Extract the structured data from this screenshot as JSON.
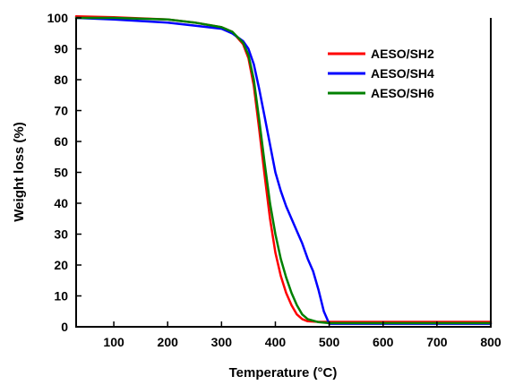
{
  "chart_data": {
    "type": "line",
    "xlabel": "Temperature (°C)",
    "ylabel": "Weight loss (%)",
    "xlim": [
      30,
      800
    ],
    "ylim": [
      0,
      100
    ],
    "xticks": [
      100,
      200,
      300,
      400,
      500,
      600,
      700,
      800
    ],
    "yticks": [
      0,
      10,
      20,
      30,
      40,
      50,
      60,
      70,
      80,
      90,
      100
    ],
    "legend_position": "top-right",
    "series": [
      {
        "name": "AESO/SH2",
        "color": "#ff0000",
        "points": [
          [
            30,
            100.5
          ],
          [
            100,
            100.2
          ],
          [
            200,
            99.5
          ],
          [
            250,
            98.5
          ],
          [
            300,
            97.0
          ],
          [
            320,
            95.5
          ],
          [
            340,
            91.5
          ],
          [
            350,
            87.0
          ],
          [
            360,
            78.0
          ],
          [
            370,
            64.0
          ],
          [
            380,
            49.0
          ],
          [
            390,
            35.0
          ],
          [
            400,
            24.0
          ],
          [
            410,
            16.5
          ],
          [
            420,
            11.0
          ],
          [
            430,
            7.0
          ],
          [
            440,
            4.0
          ],
          [
            450,
            2.5
          ],
          [
            460,
            1.8
          ],
          [
            480,
            1.6
          ],
          [
            500,
            1.6
          ],
          [
            600,
            1.6
          ],
          [
            700,
            1.6
          ],
          [
            800,
            1.6
          ]
        ]
      },
      {
        "name": "AESO/SH4",
        "color": "#0000ff",
        "points": [
          [
            30,
            100.0
          ],
          [
            100,
            99.5
          ],
          [
            200,
            98.5
          ],
          [
            250,
            97.5
          ],
          [
            300,
            96.5
          ],
          [
            320,
            95.0
          ],
          [
            340,
            92.5
          ],
          [
            350,
            90.0
          ],
          [
            360,
            85.0
          ],
          [
            370,
            77.0
          ],
          [
            380,
            68.0
          ],
          [
            390,
            59.0
          ],
          [
            400,
            50.0
          ],
          [
            410,
            44.0
          ],
          [
            420,
            39.0
          ],
          [
            430,
            35.0
          ],
          [
            440,
            31.0
          ],
          [
            450,
            27.0
          ],
          [
            460,
            22.0
          ],
          [
            470,
            18.0
          ],
          [
            480,
            12.0
          ],
          [
            490,
            5.0
          ],
          [
            500,
            1.0
          ],
          [
            600,
            1.0
          ],
          [
            700,
            1.0
          ],
          [
            800,
            1.0
          ]
        ]
      },
      {
        "name": "AESO/SH6",
        "color": "#008000",
        "points": [
          [
            30,
            100.0
          ],
          [
            100,
            100.0
          ],
          [
            200,
            99.5
          ],
          [
            250,
            98.5
          ],
          [
            300,
            97.0
          ],
          [
            320,
            95.5
          ],
          [
            340,
            92.0
          ],
          [
            350,
            88.0
          ],
          [
            360,
            80.0
          ],
          [
            370,
            67.0
          ],
          [
            380,
            53.0
          ],
          [
            390,
            40.0
          ],
          [
            400,
            30.0
          ],
          [
            410,
            22.0
          ],
          [
            420,
            16.0
          ],
          [
            430,
            11.0
          ],
          [
            440,
            7.0
          ],
          [
            450,
            4.0
          ],
          [
            460,
            2.5
          ],
          [
            480,
            1.5
          ],
          [
            500,
            1.2
          ],
          [
            600,
            1.2
          ],
          [
            700,
            1.2
          ],
          [
            800,
            1.2
          ]
        ]
      }
    ]
  }
}
